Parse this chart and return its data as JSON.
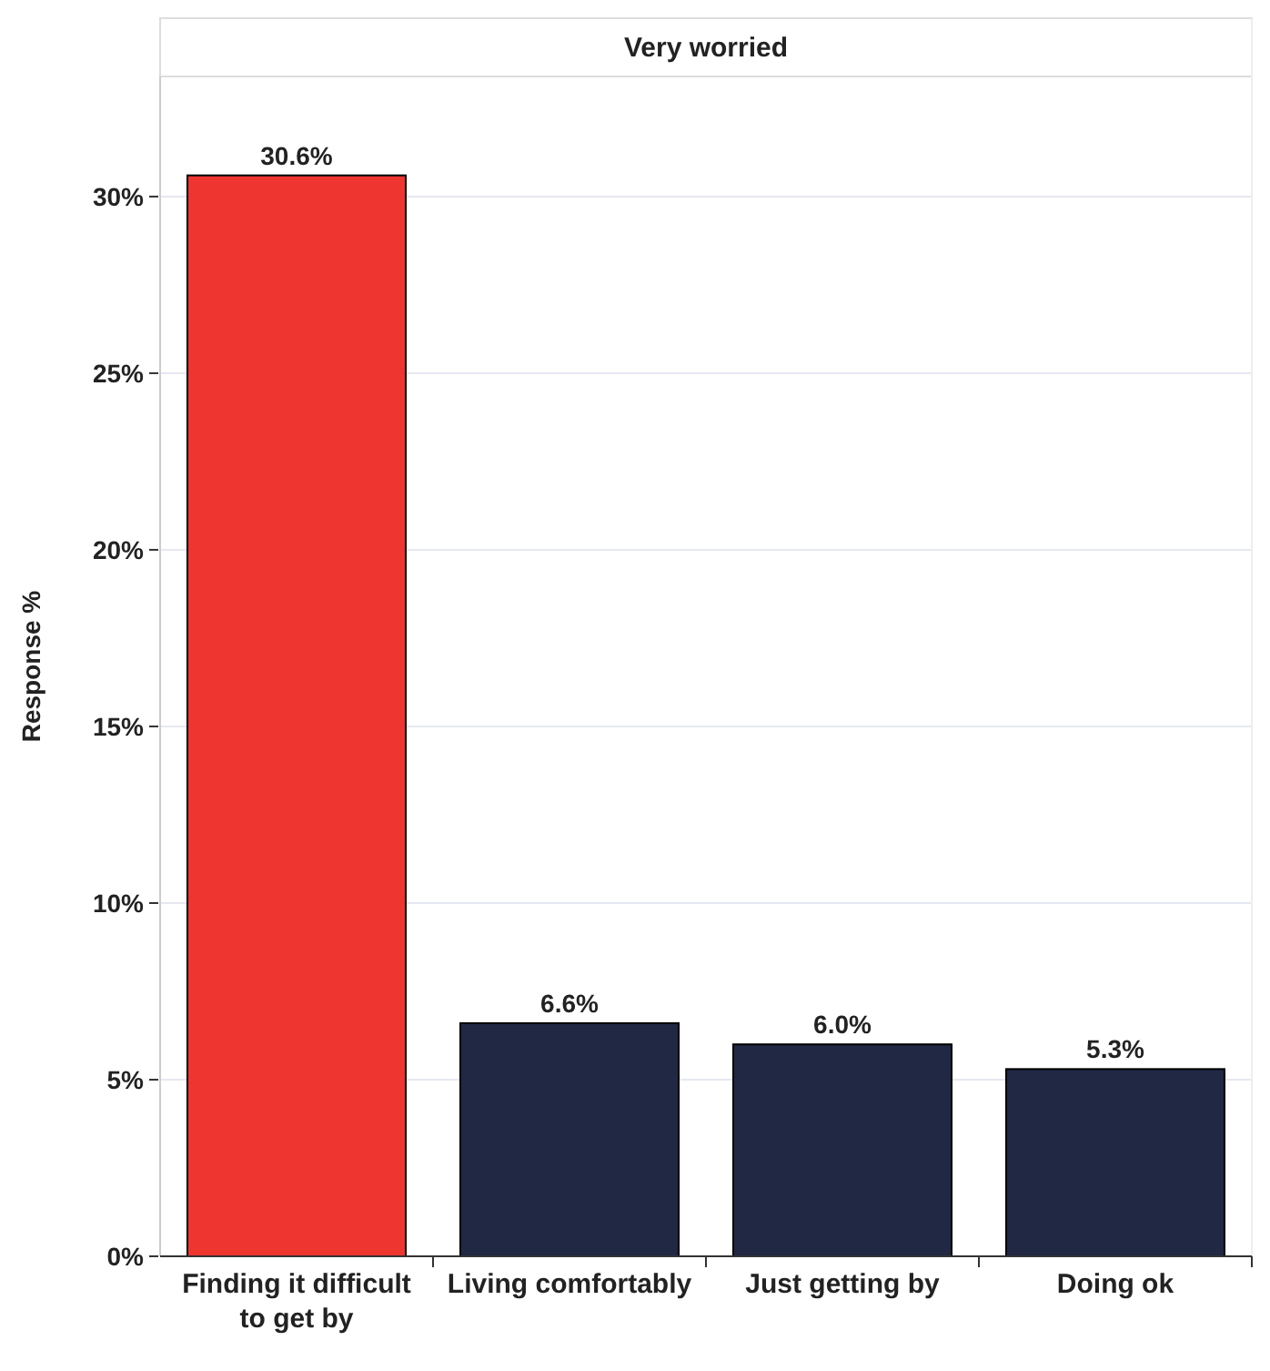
{
  "chart_data": {
    "type": "bar",
    "title": "Very worried",
    "ylabel": "Response %",
    "categories": [
      "Finding it difficult to get by",
      "Living comfortably",
      "Just getting by",
      "Doing ok"
    ],
    "values": [
      30.6,
      6.6,
      6.0,
      5.3
    ],
    "value_labels": [
      "30.6%",
      "6.6%",
      "6.0%",
      "5.3%"
    ],
    "colors": [
      "#ee3530",
      "#212844",
      "#212844",
      "#212844"
    ],
    "ylim": [
      0,
      33.4
    ],
    "yticks": [
      {
        "value": 0,
        "label": "0%"
      },
      {
        "value": 5,
        "label": "5%"
      },
      {
        "value": 10,
        "label": "10%"
      },
      {
        "value": 15,
        "label": "15%"
      },
      {
        "value": 20,
        "label": "20%"
      },
      {
        "value": 25,
        "label": "25%"
      },
      {
        "value": 30,
        "label": "30%"
      }
    ],
    "grid": "y"
  }
}
